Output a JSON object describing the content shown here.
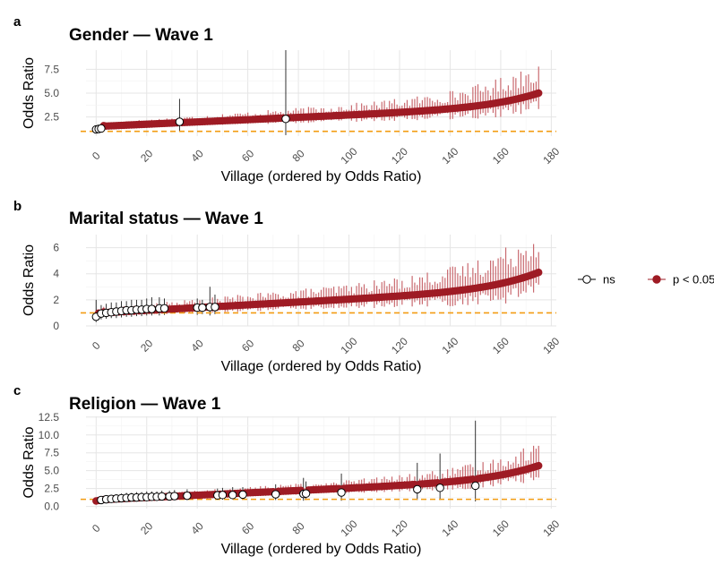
{
  "legend": {
    "items": [
      {
        "label": "ns",
        "color": "#000000",
        "filled": false
      },
      {
        "label": "p < 0.05",
        "color": "#9e1b24",
        "filled": true
      }
    ]
  },
  "reference_line": {
    "value": 1,
    "color": "#f39c12",
    "style": "dashed"
  },
  "colors": {
    "significant": "#9e1b24",
    "significant_errorbar": "#c96a70",
    "ns": "#000000"
  },
  "chart_data": [
    {
      "panel": "a",
      "type": "scatter",
      "title": "Gender — Wave 1",
      "xlabel": "Village (ordered by Odds Ratio)",
      "ylabel": "Odds Ratio",
      "n_villages": 176,
      "xlim": [
        -4,
        182
      ],
      "ylim": [
        0.5,
        9.5
      ],
      "xticks": [
        0,
        20,
        40,
        60,
        80,
        100,
        120,
        140,
        160,
        180
      ],
      "yticks": [
        2.5,
        5.0,
        7.5
      ],
      "ytick_labels": [
        "2.5",
        "5.0",
        "7.5"
      ],
      "grid": true,
      "or_range": [
        1.2,
        5.0
      ],
      "ns_points": [
        {
          "x": 0,
          "or": 1.2,
          "lo": 1.0,
          "hi": 1.4
        },
        {
          "x": 1,
          "or": 1.25,
          "lo": 1.0,
          "hi": 1.5
        },
        {
          "x": 2,
          "or": 1.3,
          "lo": 1.0,
          "hi": 1.6
        },
        {
          "x": 33,
          "or": 2.0,
          "lo": 0.95,
          "hi": 4.4
        },
        {
          "x": 75,
          "or": 2.3,
          "lo": 0.6,
          "hi": 9.5
        }
      ]
    },
    {
      "panel": "b",
      "type": "scatter",
      "title": "Marital status — Wave 1",
      "xlabel": "Village (ordered by Odds Ratio)",
      "ylabel": "Odds Ratio",
      "n_villages": 176,
      "xlim": [
        -4,
        182
      ],
      "ylim": [
        0,
        7
      ],
      "xticks": [
        0,
        20,
        40,
        60,
        80,
        100,
        120,
        140,
        160,
        180
      ],
      "yticks": [
        0,
        2,
        4,
        6
      ],
      "ytick_labels": [
        "0",
        "2",
        "4",
        "6"
      ],
      "grid": true,
      "or_range": [
        0.7,
        4.1
      ],
      "ns_points": [
        {
          "x": 0,
          "or": 0.7,
          "lo": 0.3,
          "hi": 2.0
        },
        {
          "x": 2,
          "or": 0.95,
          "lo": 0.5,
          "hi": 1.6
        },
        {
          "x": 4,
          "or": 1.0,
          "lo": 0.55,
          "hi": 1.7
        },
        {
          "x": 6,
          "or": 1.05,
          "lo": 0.6,
          "hi": 1.8
        },
        {
          "x": 8,
          "or": 1.1,
          "lo": 0.6,
          "hi": 1.8
        },
        {
          "x": 10,
          "or": 1.15,
          "lo": 0.65,
          "hi": 1.9
        },
        {
          "x": 12,
          "or": 1.2,
          "lo": 0.7,
          "hi": 1.9
        },
        {
          "x": 14,
          "or": 1.2,
          "lo": 0.7,
          "hi": 2.0
        },
        {
          "x": 16,
          "or": 1.25,
          "lo": 0.75,
          "hi": 2.0
        },
        {
          "x": 18,
          "or": 1.25,
          "lo": 0.75,
          "hi": 2.0
        },
        {
          "x": 20,
          "or": 1.3,
          "lo": 0.8,
          "hi": 2.1
        },
        {
          "x": 22,
          "or": 1.3,
          "lo": 0.8,
          "hi": 2.2
        },
        {
          "x": 25,
          "or": 1.35,
          "lo": 0.8,
          "hi": 2.2
        },
        {
          "x": 27,
          "or": 1.35,
          "lo": 0.85,
          "hi": 2.1
        },
        {
          "x": 40,
          "or": 1.4,
          "lo": 0.85,
          "hi": 2.1
        },
        {
          "x": 42,
          "or": 1.4,
          "lo": 0.9,
          "hi": 2.0
        },
        {
          "x": 45,
          "or": 1.45,
          "lo": 0.8,
          "hi": 3.0
        },
        {
          "x": 47,
          "or": 1.45,
          "lo": 0.9,
          "hi": 2.4
        }
      ]
    },
    {
      "panel": "c",
      "type": "scatter",
      "title": "Religion — Wave 1",
      "xlabel": "Village (ordered by Odds Ratio)",
      "ylabel": "Odds Ratio",
      "n_villages": 176,
      "xlim": [
        -4,
        182
      ],
      "ylim": [
        -0.3,
        12.6
      ],
      "xticks": [
        0,
        20,
        40,
        60,
        80,
        100,
        120,
        140,
        160,
        180
      ],
      "yticks": [
        0.0,
        2.5,
        5.0,
        7.5,
        10.0,
        12.5
      ],
      "ytick_labels": [
        "0.0",
        "2.5",
        "5.0",
        "7.5",
        "10.0",
        "12.5"
      ],
      "grid": true,
      "or_range": [
        0.5,
        5.7
      ],
      "ns_points": [
        {
          "x": 2,
          "or": 0.9,
          "lo": 0.5,
          "hi": 1.3
        },
        {
          "x": 4,
          "or": 1.0,
          "lo": 0.6,
          "hi": 1.5
        },
        {
          "x": 6,
          "or": 1.05,
          "lo": 0.6,
          "hi": 1.6
        },
        {
          "x": 8,
          "or": 1.1,
          "lo": 0.6,
          "hi": 1.7
        },
        {
          "x": 10,
          "or": 1.15,
          "lo": 0.65,
          "hi": 1.8
        },
        {
          "x": 12,
          "or": 1.2,
          "lo": 0.7,
          "hi": 1.9
        },
        {
          "x": 14,
          "or": 1.25,
          "lo": 0.7,
          "hi": 1.9
        },
        {
          "x": 16,
          "or": 1.25,
          "lo": 0.75,
          "hi": 2.0
        },
        {
          "x": 18,
          "or": 1.3,
          "lo": 0.75,
          "hi": 2.0
        },
        {
          "x": 20,
          "or": 1.3,
          "lo": 0.8,
          "hi": 2.1
        },
        {
          "x": 22,
          "or": 1.35,
          "lo": 0.8,
          "hi": 2.1
        },
        {
          "x": 24,
          "or": 1.35,
          "lo": 0.8,
          "hi": 2.1
        },
        {
          "x": 26,
          "or": 1.4,
          "lo": 0.85,
          "hi": 2.2
        },
        {
          "x": 29,
          "or": 1.4,
          "lo": 0.85,
          "hi": 2.2
        },
        {
          "x": 31,
          "or": 1.45,
          "lo": 0.9,
          "hi": 2.3
        },
        {
          "x": 36,
          "or": 1.5,
          "lo": 0.9,
          "hi": 2.4
        },
        {
          "x": 48,
          "or": 1.55,
          "lo": 0.95,
          "hi": 2.5
        },
        {
          "x": 50,
          "or": 1.6,
          "lo": 0.95,
          "hi": 2.6
        },
        {
          "x": 54,
          "or": 1.6,
          "lo": 1.0,
          "hi": 2.7
        },
        {
          "x": 58,
          "or": 1.65,
          "lo": 1.0,
          "hi": 2.7
        },
        {
          "x": 71,
          "or": 1.7,
          "lo": 0.9,
          "hi": 3.1
        },
        {
          "x": 82,
          "or": 1.75,
          "lo": 0.8,
          "hi": 4.0
        },
        {
          "x": 83,
          "or": 1.8,
          "lo": 0.9,
          "hi": 3.5
        },
        {
          "x": 97,
          "or": 1.95,
          "lo": 0.8,
          "hi": 4.6
        },
        {
          "x": 127,
          "or": 2.4,
          "lo": 0.9,
          "hi": 6.1
        },
        {
          "x": 136,
          "or": 2.6,
          "lo": 0.9,
          "hi": 7.4
        },
        {
          "x": 150,
          "or": 2.9,
          "lo": 0.7,
          "hi": 12.0
        }
      ]
    }
  ]
}
